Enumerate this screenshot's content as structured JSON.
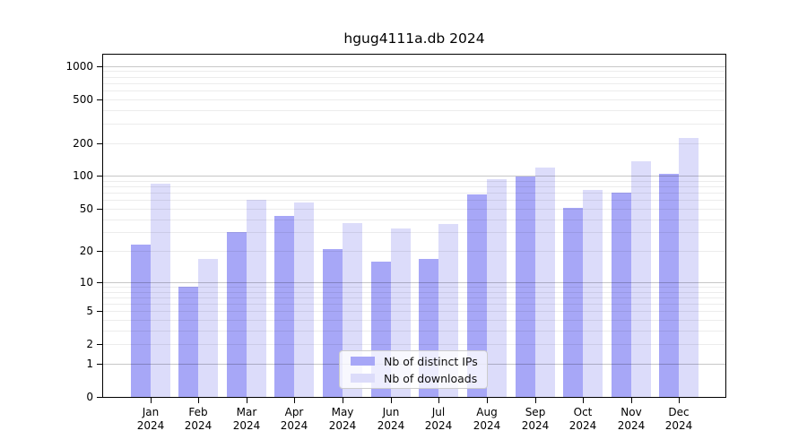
{
  "title": "hgug4111a.db 2024",
  "legend": {
    "items": [
      {
        "label": "Nb of distinct IPs",
        "color": "#a7a7f7"
      },
      {
        "label": "Nb of downloads",
        "color": "#dcdcfa"
      }
    ]
  },
  "chart_data": {
    "type": "bar",
    "title": "hgug4111a.db 2024",
    "categories": [
      "Jan",
      "Feb",
      "Mar",
      "Apr",
      "May",
      "Jun",
      "Jul",
      "Aug",
      "Sep",
      "Oct",
      "Nov",
      "Dec"
    ],
    "category_year": "2024",
    "series": [
      {
        "name": "Nb of distinct IPs",
        "color": "#a7a7f7",
        "values": [
          23,
          9,
          30,
          43,
          21,
          16,
          17,
          68,
          98,
          51,
          70,
          104
        ]
      },
      {
        "name": "Nb of downloads",
        "color": "#dcdcfa",
        "values": [
          85,
          17,
          60,
          57,
          37,
          33,
          36,
          93,
          120,
          75,
          135,
          220
        ]
      }
    ],
    "yscale": "log1p",
    "yticks": [
      0,
      1,
      2,
      5,
      10,
      20,
      50,
      100,
      200,
      500,
      1000
    ],
    "ylim": [
      0,
      1290
    ],
    "grid": "on",
    "grid_major_at": [
      1,
      10,
      100,
      1000
    ],
    "legend_position": "lower-center-inside",
    "xlabel": "",
    "ylabel": ""
  }
}
